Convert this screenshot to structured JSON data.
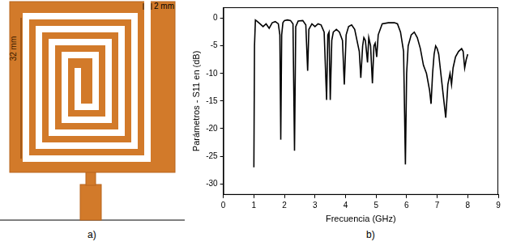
{
  "diagram": {
    "caption": "a)",
    "length_label": "32 mm",
    "slot_label": "2 mm"
  },
  "chart_caption": "b)",
  "chart_data": {
    "type": "line",
    "x_label": "Frecuencia (GHz)",
    "y_label": "Parámetros - S11 en (dB)",
    "color": "#000000",
    "marker": "none",
    "line_style": "solid",
    "grid": false,
    "xlim": [
      0,
      9
    ],
    "xticks": [
      0,
      1,
      2,
      3,
      4,
      5,
      6,
      7,
      8,
      9
    ],
    "ylim": [
      -32,
      2
    ],
    "yticks": [
      -30,
      -25,
      -20,
      -15,
      -10,
      -5,
      0
    ],
    "x": [
      1.0,
      1.02,
      1.05,
      1.1,
      1.2,
      1.3,
      1.4,
      1.5,
      1.6,
      1.7,
      1.8,
      1.85,
      1.88,
      1.91,
      1.95,
      2.0,
      2.1,
      2.2,
      2.28,
      2.33,
      2.37,
      2.45,
      2.6,
      2.7,
      2.76,
      2.8,
      2.9,
      3.0,
      3.1,
      3.2,
      3.3,
      3.38,
      3.42,
      3.46,
      3.5,
      3.55,
      3.6,
      3.7,
      3.8,
      3.9,
      3.96,
      4.02,
      4.1,
      4.2,
      4.3,
      4.45,
      4.5,
      4.56,
      4.6,
      4.65,
      4.72,
      4.76,
      4.82,
      4.88,
      4.93,
      4.97,
      5.02,
      5.07,
      5.2,
      5.4,
      5.6,
      5.7,
      5.8,
      5.9,
      5.96,
      6.0,
      6.05,
      6.15,
      6.25,
      6.35,
      6.45,
      6.55,
      6.65,
      6.75,
      6.8,
      6.85,
      6.9,
      6.95,
      7.0,
      7.05,
      7.1,
      7.2,
      7.28,
      7.35,
      7.42,
      7.47,
      7.52,
      7.6,
      7.7,
      7.8,
      7.85,
      7.9,
      7.95,
      8.0
    ],
    "values": [
      -27,
      -5,
      -0.3,
      -0.5,
      -1.0,
      -1.5,
      -1.0,
      -1.8,
      -0.8,
      -0.6,
      -1.0,
      -3,
      -22,
      -3,
      -0.8,
      -0.4,
      -0.3,
      -0.4,
      -1.0,
      -24,
      -1.5,
      -0.5,
      -0.4,
      -1.2,
      -9.5,
      -2,
      -1,
      -1.5,
      -1,
      -1.2,
      -2.5,
      -14.8,
      -3,
      -2.5,
      -14.8,
      -4,
      -2.5,
      -2,
      -2.5,
      -4,
      -12,
      -3,
      -1.5,
      -1.2,
      -2,
      -6,
      -10.8,
      -5,
      -3.5,
      -4,
      -8,
      -3.5,
      -5,
      -11.8,
      -5,
      -4.5,
      -7,
      -3,
      -1,
      -0.8,
      -0.8,
      -1,
      -2.5,
      -6,
      -26.5,
      -10,
      -5,
      -3,
      -2.5,
      -3.5,
      -5.5,
      -8.5,
      -10,
      -13,
      -15.5,
      -10,
      -6.5,
      -5,
      -5.5,
      -6.5,
      -9,
      -14,
      -18,
      -12,
      -10,
      -12,
      -9,
      -7,
      -6,
      -5.5,
      -6,
      -9,
      -7.5,
      -6.5
    ]
  }
}
